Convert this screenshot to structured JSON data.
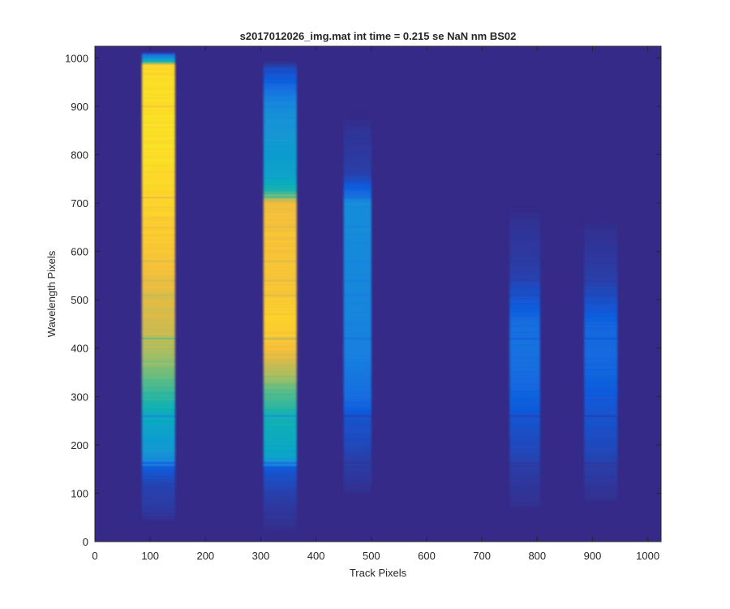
{
  "chart_data": {
    "type": "heatmap",
    "title": "s2017012026_img.mat int time = 0.215 se  NaN nm BS02",
    "xlabel": "Track Pixels",
    "ylabel": "Wavelength Pixels",
    "xlim": [
      0,
      1024
    ],
    "ylim": [
      0,
      1024
    ],
    "xticks": [
      0,
      100,
      200,
      300,
      400,
      500,
      600,
      700,
      800,
      900,
      1000
    ],
    "yticks": [
      0,
      100,
      200,
      300,
      400,
      500,
      600,
      700,
      800,
      900,
      1000
    ],
    "background_color": "#352a87",
    "colormap": "parula",
    "colormap_stops": [
      "#352a87",
      "#2a3ea8",
      "#0f5cdd",
      "#1a7ee0",
      "#1496d4",
      "#06a7c6",
      "#15b2b0",
      "#52bb8a",
      "#9bbf67",
      "#d0ba4f",
      "#f5bf3b",
      "#fcd22b",
      "#f9e426"
    ],
    "bands": [
      {
        "x_range": [
          85,
          145
        ],
        "profile": [
          [
            45,
            0.02
          ],
          [
            70,
            0.07
          ],
          [
            120,
            0.1
          ],
          [
            150,
            0.16
          ],
          [
            160,
            0.26
          ],
          [
            175,
            0.31
          ],
          [
            220,
            0.38
          ],
          [
            260,
            0.45
          ],
          [
            300,
            0.53
          ],
          [
            350,
            0.62
          ],
          [
            400,
            0.7
          ],
          [
            450,
            0.76
          ],
          [
            500,
            0.79
          ],
          [
            550,
            0.83
          ],
          [
            600,
            0.86
          ],
          [
            650,
            0.89
          ],
          [
            700,
            0.92
          ],
          [
            750,
            0.95
          ],
          [
            800,
            0.97
          ],
          [
            900,
            0.98
          ],
          [
            950,
            0.97
          ],
          [
            985,
            0.93
          ],
          [
            990,
            0.6
          ],
          [
            1000,
            0.3
          ],
          [
            1008,
            0.2
          ],
          [
            1012,
            0.0
          ]
        ]
      },
      {
        "x_range": [
          305,
          365
        ],
        "profile": [
          [
            25,
            0.02
          ],
          [
            60,
            0.05
          ],
          [
            100,
            0.09
          ],
          [
            150,
            0.15
          ],
          [
            160,
            0.3
          ],
          [
            175,
            0.39
          ],
          [
            200,
            0.43
          ],
          [
            250,
            0.48
          ],
          [
            300,
            0.56
          ],
          [
            350,
            0.7
          ],
          [
            400,
            0.84
          ],
          [
            450,
            0.9
          ],
          [
            500,
            0.88
          ],
          [
            550,
            0.86
          ],
          [
            600,
            0.85
          ],
          [
            650,
            0.84
          ],
          [
            700,
            0.82
          ],
          [
            715,
            0.62
          ],
          [
            730,
            0.48
          ],
          [
            760,
            0.4
          ],
          [
            800,
            0.36
          ],
          [
            850,
            0.33
          ],
          [
            900,
            0.3
          ],
          [
            920,
            0.25
          ],
          [
            950,
            0.18
          ],
          [
            980,
            0.12
          ],
          [
            995,
            0.0
          ]
        ]
      },
      {
        "x_range": [
          450,
          500
        ],
        "profile": [
          [
            100,
            0.02
          ],
          [
            150,
            0.07
          ],
          [
            200,
            0.11
          ],
          [
            250,
            0.14
          ],
          [
            300,
            0.21
          ],
          [
            400,
            0.26
          ],
          [
            500,
            0.28
          ],
          [
            600,
            0.29
          ],
          [
            700,
            0.3
          ],
          [
            720,
            0.2
          ],
          [
            740,
            0.15
          ],
          [
            760,
            0.09
          ],
          [
            800,
            0.06
          ],
          [
            850,
            0.04
          ],
          [
            880,
            0.0
          ]
        ]
      },
      {
        "x_range": [
          750,
          805
        ],
        "profile": [
          [
            70,
            0.02
          ],
          [
            130,
            0.06
          ],
          [
            170,
            0.1
          ],
          [
            230,
            0.13
          ],
          [
            300,
            0.18
          ],
          [
            350,
            0.21
          ],
          [
            400,
            0.22
          ],
          [
            450,
            0.21
          ],
          [
            500,
            0.15
          ],
          [
            550,
            0.09
          ],
          [
            600,
            0.06
          ],
          [
            650,
            0.04
          ],
          [
            690,
            0.0
          ]
        ]
      },
      {
        "x_range": [
          885,
          945
        ],
        "profile": [
          [
            85,
            0.02
          ],
          [
            130,
            0.06
          ],
          [
            170,
            0.1
          ],
          [
            230,
            0.13
          ],
          [
            300,
            0.16
          ],
          [
            350,
            0.19
          ],
          [
            400,
            0.2
          ],
          [
            450,
            0.19
          ],
          [
            500,
            0.13
          ],
          [
            550,
            0.08
          ],
          [
            600,
            0.05
          ],
          [
            640,
            0.03
          ],
          [
            670,
            0.0
          ]
        ]
      }
    ],
    "absorption_lines": [
      {
        "row": 155,
        "strength": 0.5
      },
      {
        "row": 163,
        "strength": 0.7
      },
      {
        "row": 260,
        "strength": 0.9
      },
      {
        "row": 420,
        "strength": 0.4
      },
      {
        "row": 510,
        "strength": 0.3
      },
      {
        "row": 540,
        "strength": 0.25
      },
      {
        "row": 580,
        "strength": 0.2
      },
      {
        "row": 650,
        "strength": 0.15
      },
      {
        "row": 712,
        "strength": 0.35
      },
      {
        "row": 900,
        "strength": 0.3
      }
    ]
  }
}
